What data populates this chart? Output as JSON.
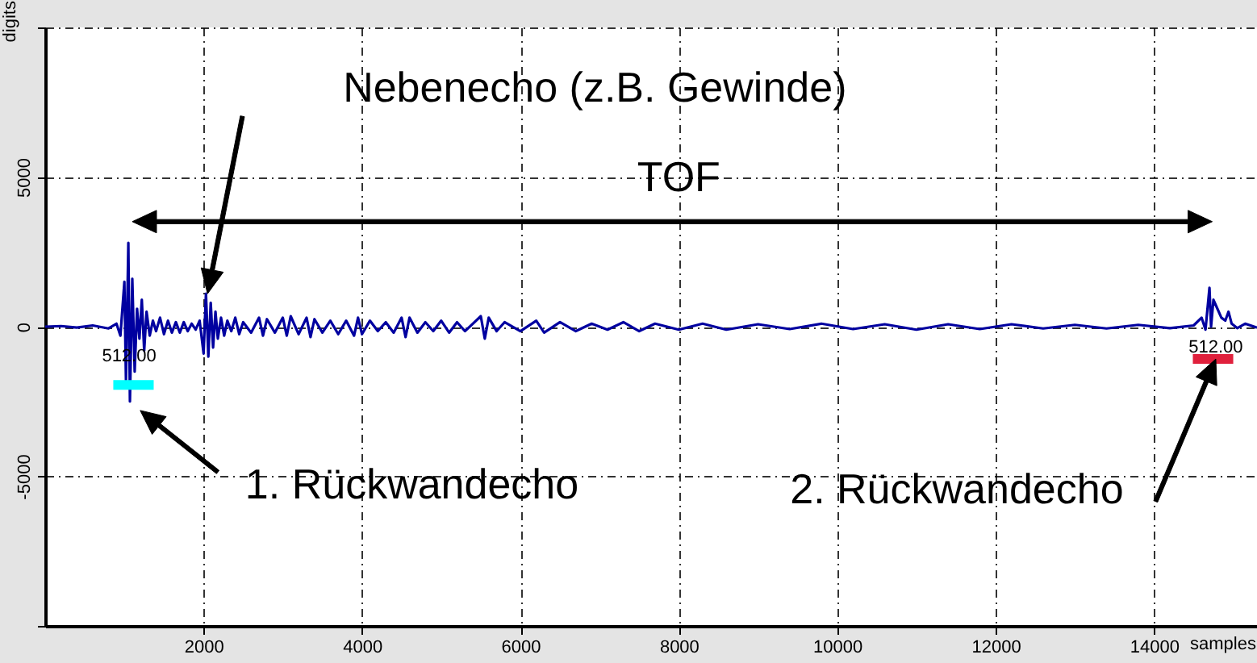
{
  "chart_data": {
    "type": "line",
    "xlabel": "samples",
    "ylabel": "digits",
    "xlim": [
      0,
      15300
    ],
    "ylim": [
      -10000,
      10000
    ],
    "xticks": [
      2000,
      4000,
      6000,
      8000,
      10000,
      12000,
      14000
    ],
    "yticks": [
      {
        "value": -10000,
        "label": null
      },
      -5000,
      0,
      5000,
      {
        "value": 10000,
        "label": null
      }
    ],
    "grid": true,
    "marker": "none",
    "line_style": "solid",
    "series": [
      {
        "color": "#0000a0",
        "x": [
          0,
          200,
          400,
          600,
          800,
          900,
          950,
          1000,
          1020,
          1050,
          1070,
          1100,
          1130,
          1160,
          1190,
          1220,
          1250,
          1280,
          1320,
          1360,
          1400,
          1450,
          1500,
          1550,
          1600,
          1650,
          1700,
          1750,
          1800,
          1850,
          1900,
          1950,
          2000,
          2030,
          2060,
          2090,
          2120,
          2150,
          2180,
          2220,
          2260,
          2300,
          2350,
          2400,
          2450,
          2500,
          2600,
          2700,
          2750,
          2800,
          2900,
          3000,
          3050,
          3100,
          3200,
          3300,
          3350,
          3400,
          3500,
          3600,
          3700,
          3800,
          3900,
          3950,
          4000,
          4100,
          4200,
          4300,
          4400,
          4500,
          4550,
          4600,
          4700,
          4800,
          4900,
          5000,
          5100,
          5200,
          5300,
          5500,
          5550,
          5600,
          5700,
          5800,
          6000,
          6200,
          6300,
          6500,
          6700,
          6900,
          7100,
          7300,
          7500,
          7700,
          8000,
          8300,
          8600,
          9000,
          9400,
          9800,
          10200,
          10600,
          11000,
          11400,
          11800,
          12200,
          12600,
          13000,
          13400,
          13800,
          14200,
          14500,
          14600,
          14650,
          14700,
          14720,
          14750,
          14800,
          14850,
          14900,
          14940,
          14980,
          15050,
          15150,
          15300
        ],
        "values": [
          0,
          20,
          -30,
          40,
          -60,
          100,
          -300,
          1500,
          -1800,
          2800,
          -2500,
          1600,
          -1500,
          600,
          -400,
          900,
          -800,
          500,
          -300,
          200,
          -150,
          300,
          -250,
          200,
          -200,
          150,
          -200,
          150,
          -150,
          100,
          -100,
          200,
          -900,
          1100,
          -1000,
          800,
          -700,
          500,
          -400,
          300,
          -300,
          200,
          -150,
          300,
          -250,
          150,
          -200,
          300,
          -300,
          250,
          -200,
          300,
          -300,
          350,
          -250,
          300,
          -350,
          250,
          -200,
          200,
          -250,
          200,
          -300,
          300,
          -250,
          200,
          -150,
          150,
          -200,
          300,
          -350,
          300,
          -200,
          150,
          -150,
          200,
          -200,
          150,
          -150,
          350,
          -400,
          300,
          -150,
          150,
          -150,
          200,
          -200,
          150,
          -150,
          100,
          -100,
          150,
          -150,
          100,
          -100,
          100,
          -100,
          80,
          -80,
          100,
          -80,
          80,
          -100,
          80,
          -80,
          80,
          -60,
          60,
          -60,
          60,
          -50,
          40,
          300,
          -100,
          1300,
          0,
          900,
          600,
          300,
          200,
          500,
          100,
          -50,
          100,
          -30
        ]
      },
      {
        "type": "line",
        "color": "#00ffff",
        "x": [
          860,
          1370
        ],
        "values": [
          -1950,
          -1950
        ]
      },
      {
        "type": "line",
        "color": "#e0203c",
        "x": [
          14490,
          15000
        ],
        "values": [
          -1080,
          -1080
        ]
      }
    ],
    "annotations": [
      "Nebenecho (z.B. Gewinde)",
      "TOF",
      "1. Rückwandecho",
      "2. Rückwandecho",
      {
        "text": "512.00",
        "x": 1060,
        "y": -1000
      },
      {
        "text": "512.00",
        "x": 14780,
        "y": -700
      }
    ]
  }
}
